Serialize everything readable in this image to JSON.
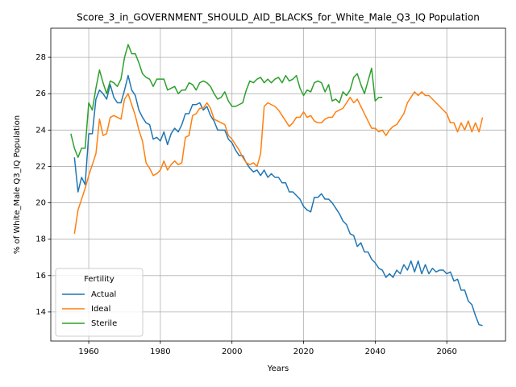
{
  "chart_data": {
    "type": "line",
    "title": "Score_3_in_GOVERNMENT_SHOULD_AID_BLACKS_for_White_Male_Q3_IQ Population",
    "xlabel": "Years",
    "ylabel": "% of White_Male Q3_IQ Population",
    "legend_title": "Fertility",
    "legend": "lower left",
    "grid": true,
    "xlim": [
      1949.4,
      2076.4
    ],
    "xticks": [
      1960,
      1980,
      2000,
      2020,
      2040,
      2060
    ],
    "ylim": [
      12.4,
      29.6
    ],
    "yticks": [
      14,
      16,
      18,
      20,
      22,
      24,
      26,
      28
    ],
    "x": [
      1955,
      1956,
      1957,
      1958,
      1959,
      1960,
      1961,
      1962,
      1963,
      1964,
      1965,
      1966,
      1967,
      1968,
      1969,
      1970,
      1971,
      1972,
      1973,
      1974,
      1975,
      1976,
      1977,
      1978,
      1979,
      1980,
      1981,
      1982,
      1983,
      1984,
      1985,
      1986,
      1987,
      1988,
      1989,
      1990,
      1991,
      1992,
      1993,
      1994,
      1995,
      1996,
      1997,
      1998,
      1999,
      2000,
      2001,
      2002,
      2003,
      2004,
      2005,
      2006,
      2007,
      2008,
      2009,
      2010,
      2011,
      2012,
      2013,
      2014,
      2015,
      2016,
      2017,
      2018,
      2019,
      2020,
      2021,
      2022,
      2023,
      2024,
      2025,
      2026,
      2027,
      2028,
      2029,
      2030,
      2031,
      2032,
      2033,
      2034,
      2035,
      2036,
      2037,
      2038,
      2039,
      2040,
      2041,
      2042,
      2043,
      2044,
      2045,
      2046,
      2047,
      2048,
      2049,
      2050,
      2051,
      2052,
      2053,
      2054,
      2055,
      2056,
      2057,
      2058,
      2059,
      2060,
      2061,
      2062,
      2063,
      2064,
      2065,
      2066,
      2067,
      2068,
      2069,
      2070
    ],
    "series": [
      {
        "name": "Actual",
        "color": "#1f77b4",
        "values": [
          null,
          22.5,
          20.6,
          21.4,
          21.0,
          23.8,
          23.8,
          25.7,
          26.2,
          26.0,
          25.7,
          26.5,
          25.8,
          25.5,
          25.5,
          26.2,
          27.0,
          26.2,
          25.9,
          25.1,
          24.7,
          24.4,
          24.3,
          23.5,
          23.6,
          23.4,
          23.9,
          23.2,
          23.8,
          24.1,
          23.9,
          24.3,
          24.9,
          24.9,
          25.4,
          25.4,
          25.5,
          25.1,
          25.3,
          24.8,
          24.5,
          24.0,
          24.0,
          24.0,
          23.5,
          23.3,
          22.9,
          22.6,
          22.6,
          22.2,
          21.9,
          21.7,
          21.8,
          21.5,
          21.8,
          21.4,
          21.6,
          21.4,
          21.4,
          21.1,
          21.1,
          20.6,
          20.6,
          20.4,
          20.2,
          19.8,
          19.6,
          19.5,
          20.3,
          20.3,
          20.5,
          20.2,
          20.2,
          20.0,
          19.7,
          19.4,
          19.0,
          18.8,
          18.3,
          18.2,
          17.6,
          17.8,
          17.3,
          17.3,
          16.9,
          16.7,
          16.4,
          16.3,
          15.9,
          16.1,
          15.9,
          16.3,
          16.1,
          16.6,
          16.3,
          16.8,
          16.2,
          16.8,
          16.1,
          16.6,
          16.1,
          16.4,
          16.2,
          16.3,
          16.3,
          16.1,
          16.2,
          15.7,
          15.8,
          15.2,
          15.2,
          14.6,
          14.4,
          13.8,
          13.3,
          13.25
        ]
      },
      {
        "name": "Ideal",
        "color": "#ff7f0e",
        "values": [
          null,
          18.3,
          19.6,
          20.2,
          20.8,
          21.5,
          22.1,
          22.7,
          24.6,
          23.7,
          23.8,
          24.7,
          24.8,
          24.7,
          24.6,
          25.7,
          26.0,
          25.4,
          24.8,
          24.0,
          23.4,
          22.2,
          21.9,
          21.5,
          21.6,
          21.8,
          22.3,
          21.8,
          22.1,
          22.3,
          22.1,
          22.2,
          23.6,
          23.7,
          24.8,
          24.9,
          25.2,
          25.2,
          25.5,
          25.2,
          24.6,
          24.5,
          24.4,
          24.3,
          23.7,
          23.5,
          23.2,
          22.9,
          22.5,
          22.2,
          22.1,
          22.2,
          22.0,
          22.7,
          25.3,
          25.5,
          25.4,
          25.3,
          25.1,
          24.8,
          24.5,
          24.2,
          24.4,
          24.7,
          24.7,
          25.0,
          24.7,
          24.8,
          24.5,
          24.4,
          24.4,
          24.6,
          24.7,
          24.7,
          25.0,
          25.1,
          25.2,
          25.5,
          25.8,
          25.5,
          25.7,
          25.3,
          24.9,
          24.5,
          24.1,
          24.1,
          23.9,
          24.0,
          23.7,
          24.0,
          24.2,
          24.3,
          24.6,
          24.9,
          25.5,
          25.8,
          26.1,
          25.9,
          26.1,
          25.9,
          25.9,
          25.7,
          25.5,
          25.3,
          25.1,
          24.9,
          24.4,
          24.4,
          23.9,
          24.4,
          24.0,
          24.5,
          23.9,
          24.4,
          23.9,
          24.7
        ]
      },
      {
        "name": "Sterile",
        "color": "#2ca02c",
        "values": [
          23.8,
          23.0,
          22.5,
          23.0,
          23.0,
          25.5,
          25.1,
          26.3,
          27.3,
          26.6,
          26.0,
          26.7,
          26.6,
          26.4,
          26.8,
          28.0,
          28.7,
          28.2,
          28.2,
          27.7,
          27.1,
          26.9,
          26.8,
          26.4,
          26.8,
          26.8,
          26.8,
          26.2,
          26.3,
          26.4,
          26.0,
          26.2,
          26.2,
          26.6,
          26.5,
          26.2,
          26.6,
          26.7,
          26.6,
          26.4,
          26.0,
          25.7,
          25.8,
          26.1,
          25.6,
          25.3,
          25.3,
          25.4,
          25.5,
          26.2,
          26.7,
          26.6,
          26.8,
          26.9,
          26.6,
          26.8,
          26.6,
          26.8,
          26.9,
          26.6,
          27.0,
          26.7,
          26.8,
          27.0,
          26.3,
          25.9,
          26.2,
          26.1,
          26.6,
          26.7,
          26.6,
          26.1,
          26.5,
          25.6,
          25.7,
          25.5,
          26.1,
          25.9,
          26.2,
          26.9,
          27.1,
          26.5,
          26.0,
          26.7,
          27.4,
          25.6,
          25.8,
          25.8,
          null,
          null,
          null,
          null,
          null,
          null,
          null,
          null,
          null,
          null,
          null,
          null,
          null,
          null,
          null,
          null,
          null,
          null,
          null,
          null,
          null,
          null,
          null,
          null,
          null,
          null,
          null,
          null
        ]
      }
    ]
  }
}
